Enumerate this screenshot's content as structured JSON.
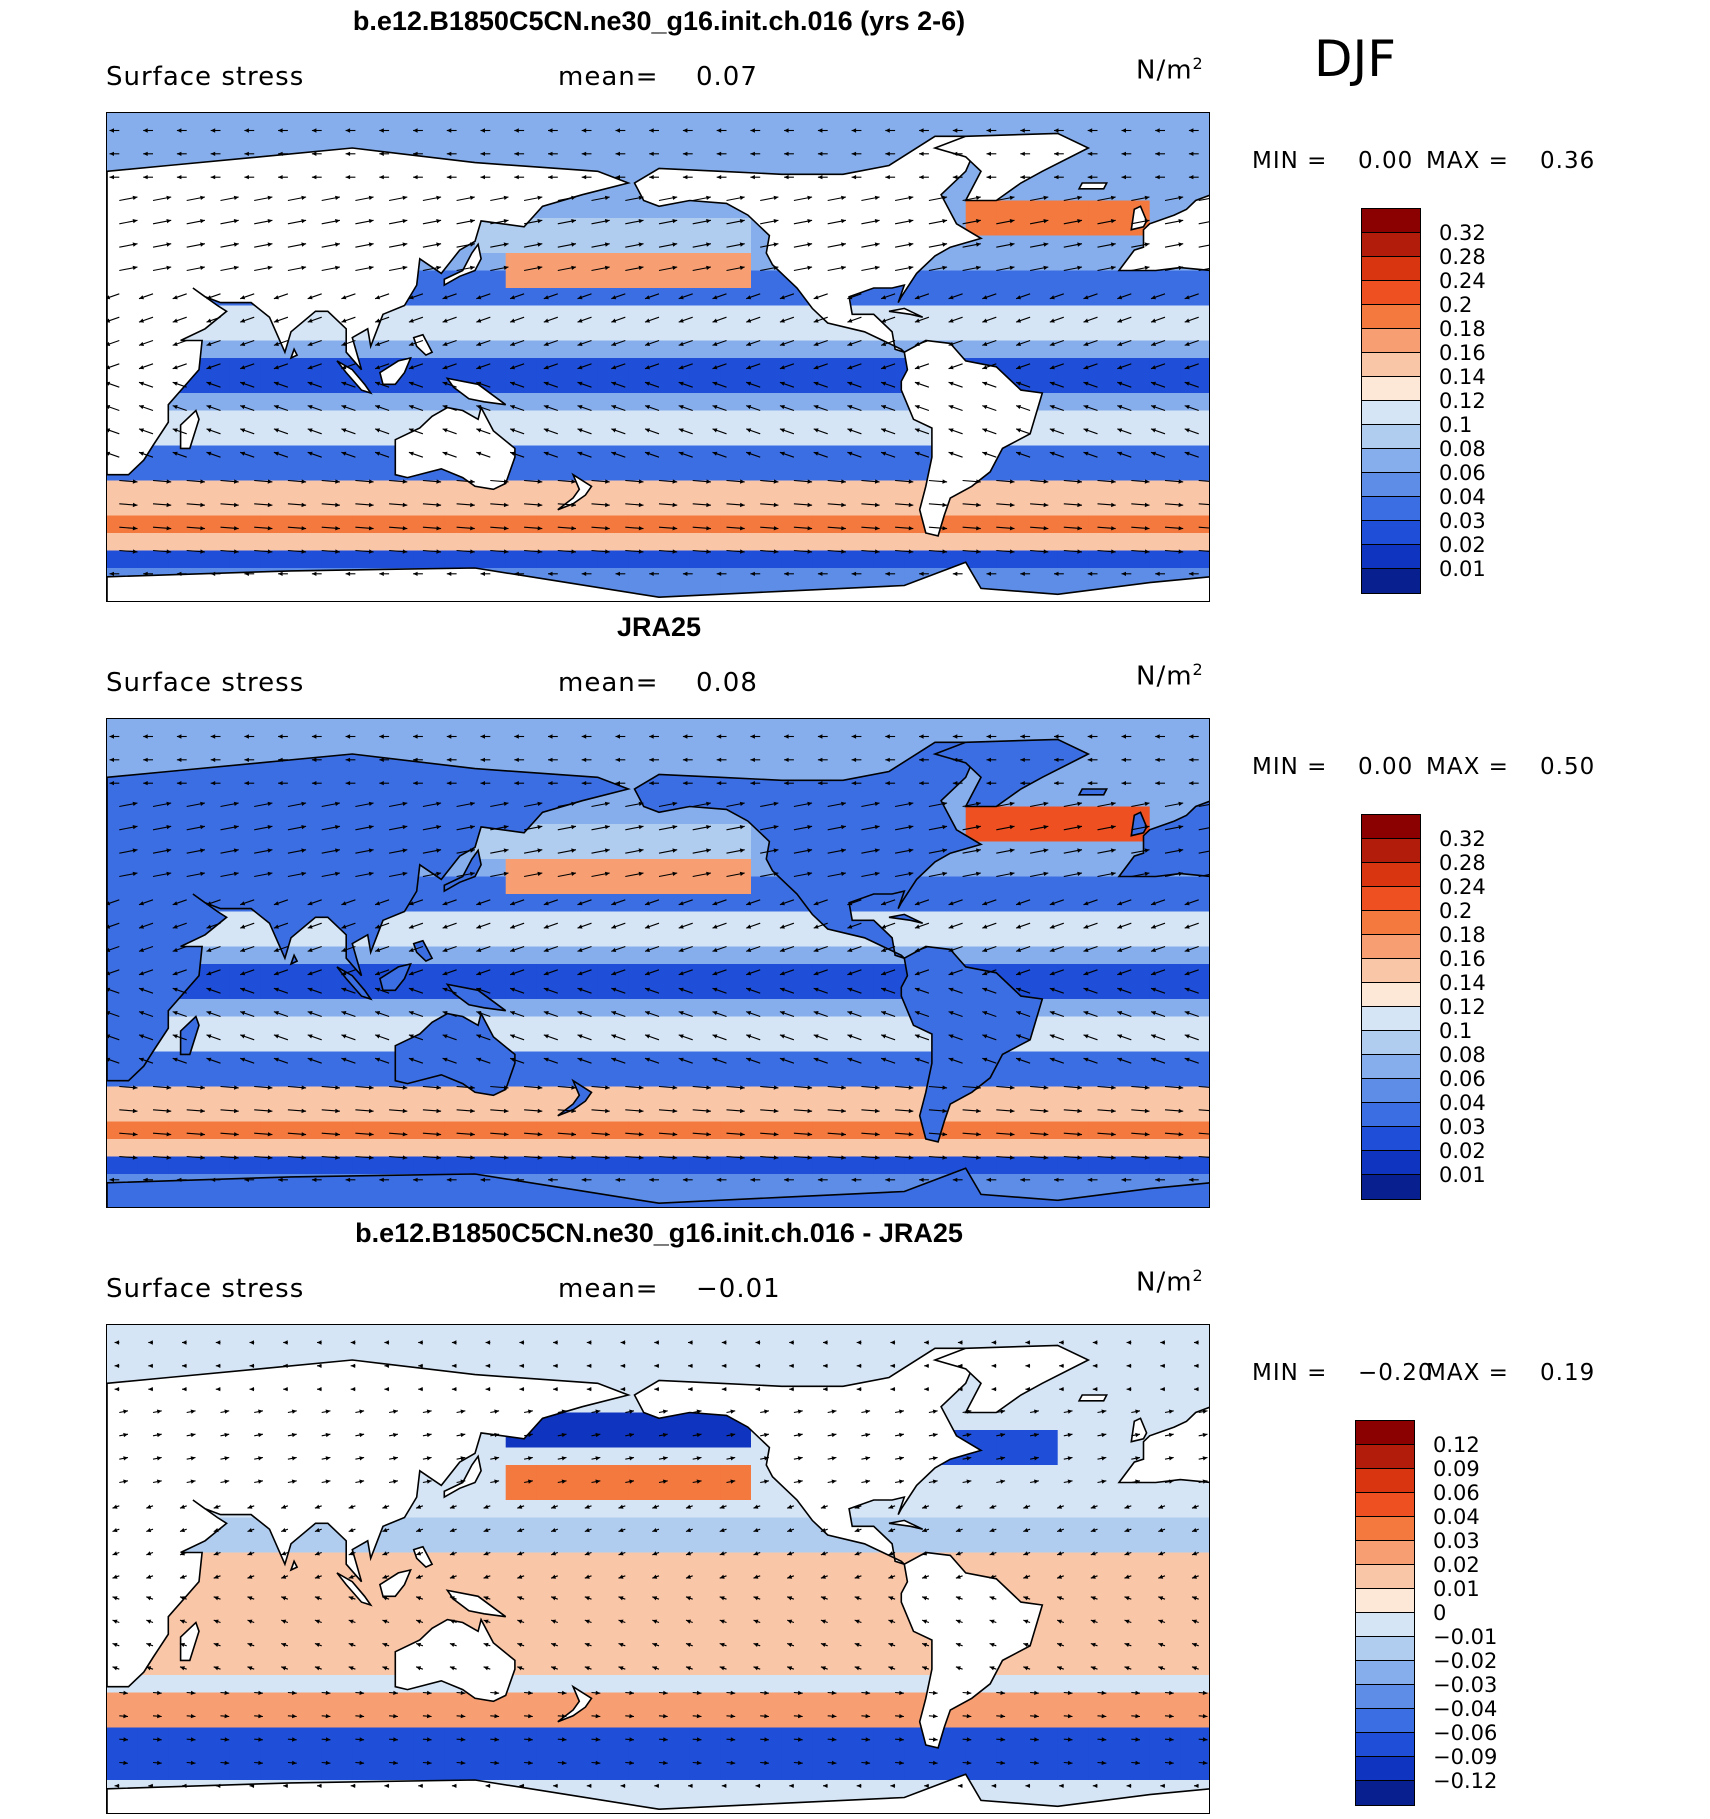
{
  "season": "DJF",
  "panels": [
    {
      "title": "b.e12.B1850C5CN.ne30_g16.init.ch.016 (yrs 2-6)",
      "left_label": "Surface stress",
      "mean_label": "mean=",
      "mean_value": "0.07",
      "units_base": "N/m",
      "units_exp": "2",
      "min_label": "MIN =",
      "min_value": "0.00",
      "max_label": "MAX =",
      "max_value": "0.36",
      "colorbar": {
        "labels": [
          "0.32",
          "0.28",
          "0.24",
          "0.2",
          "0.18",
          "0.16",
          "0.14",
          "0.12",
          "0.1",
          "0.08",
          "0.06",
          "0.04",
          "0.03",
          "0.02",
          "0.01"
        ],
        "colors": [
          "#8b0000",
          "#b21d0b",
          "#d93510",
          "#ee5022",
          "#f4793f",
          "#f79f72",
          "#fac6a8",
          "#fde8d8",
          "#d6e5f5",
          "#b0cdf0",
          "#86aeec",
          "#5d8de6",
          "#3c6ee3",
          "#1f4fd8",
          "#0f34c0",
          "#08208f"
        ]
      },
      "map": {
        "bg_scheme": "model",
        "arrow_scale": 1.0
      }
    },
    {
      "title": "JRA25",
      "left_label": "Surface stress",
      "mean_label": "mean=",
      "mean_value": "0.08",
      "units_base": "N/m",
      "units_exp": "2",
      "min_label": "MIN =",
      "min_value": "0.00",
      "max_label": "MAX =",
      "max_value": "0.50",
      "colorbar": {
        "labels": [
          "0.32",
          "0.28",
          "0.24",
          "0.2",
          "0.18",
          "0.16",
          "0.14",
          "0.12",
          "0.1",
          "0.08",
          "0.06",
          "0.04",
          "0.03",
          "0.02",
          "0.01"
        ],
        "colors": [
          "#8b0000",
          "#b21d0b",
          "#d93510",
          "#ee5022",
          "#f4793f",
          "#f79f72",
          "#fac6a8",
          "#fde8d8",
          "#d6e5f5",
          "#b0cdf0",
          "#86aeec",
          "#5d8de6",
          "#3c6ee3",
          "#1f4fd8",
          "#0f34c0",
          "#08208f"
        ]
      },
      "map": {
        "bg_scheme": "obs",
        "arrow_scale": 1.0
      }
    },
    {
      "title": "b.e12.B1850C5CN.ne30_g16.init.ch.016 - JRA25",
      "left_label": "Surface stress",
      "mean_label": "mean=",
      "mean_value": "−0.01",
      "units_base": "N/m",
      "units_exp": "2",
      "min_label": "MIN =",
      "min_value": "−0.20",
      "max_label": "MAX =",
      "max_value": "0.19",
      "colorbar": {
        "labels": [
          "0.12",
          "0.09",
          "0.06",
          "0.04",
          "0.03",
          "0.02",
          "0.01",
          "0",
          "−0.01",
          "−0.02",
          "−0.03",
          "−0.04",
          "−0.06",
          "−0.09",
          "−0.12"
        ],
        "colors": [
          "#8b0000",
          "#b21d0b",
          "#d93510",
          "#ee5022",
          "#f4793f",
          "#f79f72",
          "#fac6a8",
          "#fde8d8",
          "#d6e5f5",
          "#b0cdf0",
          "#86aeec",
          "#5d8de6",
          "#3c6ee3",
          "#1f4fd8",
          "#0f34c0",
          "#08208f"
        ]
      },
      "map": {
        "bg_scheme": "diff",
        "arrow_scale": 0.8
      }
    }
  ]
}
